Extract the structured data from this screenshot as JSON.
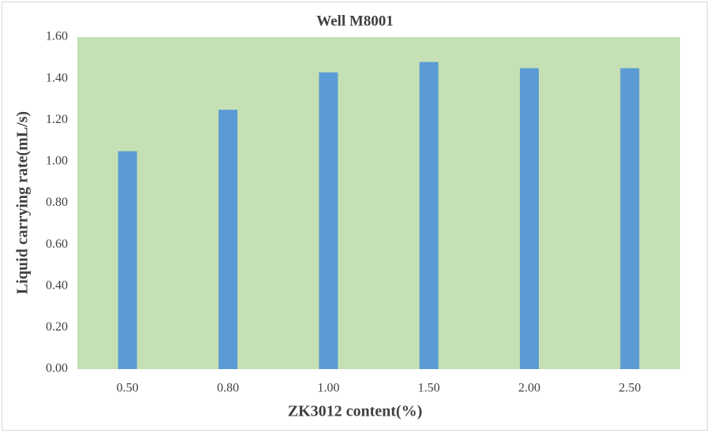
{
  "chart_data": {
    "type": "bar",
    "title": "Well M8001",
    "x_label": "ZK3012 content(%)",
    "y_label": "Liquid carrying rate(mL/s)",
    "categories": [
      "0.50",
      "0.80",
      "1.00",
      "1.50",
      "2.00",
      "2.50"
    ],
    "values": [
      1.05,
      1.25,
      1.43,
      1.48,
      1.45,
      1.45
    ],
    "color": "#5b9bd5",
    "plot_background": "#c5e0b4",
    "ylim": [
      0,
      1.6
    ],
    "yticks": [
      {
        "value": 0,
        "label": "0.00"
      },
      {
        "value": 0.2,
        "label": "0.20"
      },
      {
        "value": 0.4,
        "label": "0.40"
      },
      {
        "value": 0.6,
        "label": "0.60"
      },
      {
        "value": 0.8,
        "label": "0.80"
      },
      {
        "value": 1.0,
        "label": "1.00"
      },
      {
        "value": 1.2,
        "label": "1.20"
      },
      {
        "value": 1.4,
        "label": "1.40"
      },
      {
        "value": 1.6,
        "label": "1.60"
      }
    ],
    "grid": false
  }
}
